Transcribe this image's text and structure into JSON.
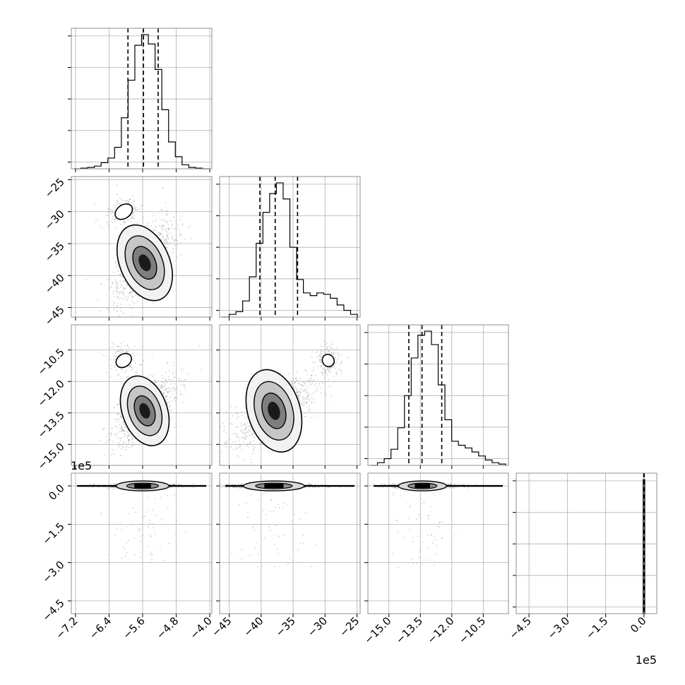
{
  "chart_data": {
    "type": "corner",
    "grid": true,
    "params": [
      {
        "range": [
          -7.3,
          -3.95
        ],
        "ticks": [
          -7.2,
          -6.4,
          -5.6,
          -4.8,
          -4.0
        ],
        "tick_labels": [
          "−7.2",
          "−6.4",
          "−5.6",
          "−4.8",
          "−4.0"
        ],
        "quantiles": [
          -5.95,
          -5.58,
          -5.23
        ],
        "mode": -5.6,
        "sigma": 0.33,
        "hist_bins": [
          0,
          0.005,
          0.01,
          0.02,
          0.045,
          0.08,
          0.16,
          0.38,
          0.66,
          0.92,
          1.0,
          0.93,
          0.74,
          0.44,
          0.2,
          0.09,
          0.03,
          0.01,
          0.005,
          0
        ]
      },
      {
        "range": [
          -46.5,
          -24.5
        ],
        "ticks": [
          -45,
          -40,
          -35,
          -30,
          -25
        ],
        "tick_labels": [
          "−45",
          "−40",
          "−35",
          "−30",
          "−25"
        ],
        "quantiles": [
          -40.2,
          -37.8,
          -34.3
        ],
        "mode": -38.0,
        "sigma": 2.5,
        "hist_bins": [
          0,
          0.02,
          0.04,
          0.12,
          0.3,
          0.55,
          0.78,
          0.92,
          1.0,
          0.88,
          0.52,
          0.28,
          0.18,
          0.16,
          0.18,
          0.17,
          0.14,
          0.09,
          0.05,
          0.02
        ]
      },
      {
        "range": [
          -16.0,
          -9.3
        ],
        "ticks": [
          -15.0,
          -13.5,
          -12.0,
          -10.5
        ],
        "tick_labels": [
          "−15.0",
          "−13.5",
          "−12.0",
          "−10.5"
        ],
        "quantiles": [
          -14.05,
          -13.42,
          -12.48
        ],
        "mode": -13.4,
        "sigma": 0.6,
        "hist_bins": [
          0,
          0.02,
          0.05,
          0.12,
          0.28,
          0.52,
          0.8,
          0.97,
          1.0,
          0.9,
          0.6,
          0.34,
          0.18,
          0.15,
          0.13,
          0.1,
          0.07,
          0.04,
          0.02,
          0.01
        ]
      },
      {
        "range": [
          -500000,
          50000
        ],
        "ticks": [
          -450000,
          -300000,
          -150000,
          0
        ],
        "tick_labels": [
          "−4.5",
          "−3.0",
          "−1.5",
          "0.0"
        ],
        "quantiles": [
          -1000,
          0,
          1000
        ],
        "mode": 0,
        "sigma": 6000,
        "hist_bins": [
          0,
          1.0,
          0
        ]
      }
    ],
    "density_modes": [
      {
        "pair": [
          0,
          1
        ],
        "main": [
          -5.55,
          -38.0
        ],
        "main_sigma": [
          0.3,
          2.6
        ],
        "rho": 0.65,
        "secondary": [
          -6.05,
          -30.0
        ],
        "secondary_sigma": [
          0.25,
          1.4
        ]
      },
      {
        "pair": [
          0,
          2
        ],
        "main": [
          -5.55,
          -13.4
        ],
        "main_sigma": [
          0.3,
          0.65
        ],
        "rho": 0.62,
        "secondary": [
          -6.05,
          -11.0
        ],
        "secondary_sigma": [
          0.22,
          0.4
        ]
      },
      {
        "pair": [
          1,
          2
        ],
        "main": [
          -38.0,
          -13.4
        ],
        "main_sigma": [
          2.7,
          0.65
        ],
        "rho": 0.7,
        "secondary": [
          -29.5,
          -11.0
        ],
        "secondary_sigma": [
          1.0,
          0.4
        ]
      }
    ],
    "offset_labels": {
      "y": "1e5",
      "x": "1e5"
    },
    "colors": {
      "contour": "#000000",
      "samples": "#7f7f7f",
      "frame": "#8f8f8f",
      "grid": "#b0b0b0"
    }
  }
}
